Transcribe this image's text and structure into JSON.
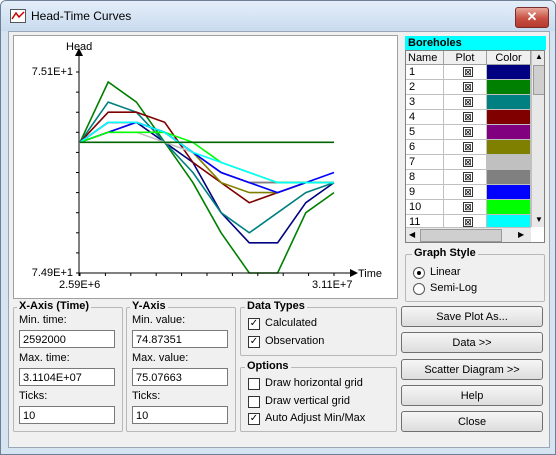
{
  "window": {
    "title": "Head-Time Curves",
    "close_glyph": "✕"
  },
  "chart_data": {
    "type": "line",
    "ylabel": "Head",
    "xlabel": "Time",
    "x_min_label": "2.59E+6",
    "x_max_label": "3.11E+7",
    "y_max_label": "7.51E+1",
    "y_min_label": "7.49E+1",
    "xlim": [
      2592000,
      31104000
    ],
    "ylim": [
      74.87351,
      75.07663
    ],
    "x": [
      0,
      1,
      2,
      3,
      4,
      5,
      6,
      7,
      8,
      9
    ],
    "series": [
      {
        "color": "#000080",
        "values": [
          75.0,
          75.02,
          75.02,
          75.0,
          74.98,
          74.93,
          74.9,
          74.9,
          74.94,
          74.96
        ]
      },
      {
        "color": "#008000",
        "values": [
          75.0,
          75.06,
          75.04,
          75.0,
          74.96,
          74.91,
          74.87,
          74.87,
          74.93,
          74.95
        ]
      },
      {
        "color": "#008080",
        "values": [
          75.0,
          75.04,
          75.03,
          75.0,
          74.97,
          74.93,
          74.91,
          74.93,
          74.95,
          74.96
        ]
      },
      {
        "color": "#800000",
        "values": [
          75.0,
          75.03,
          75.03,
          75.02,
          74.98,
          74.96,
          74.94,
          74.95,
          74.96,
          74.96
        ]
      },
      {
        "color": "#800080",
        "values": [
          75.0,
          75.02,
          75.02,
          75.01,
          74.99,
          74.97,
          74.96,
          74.96,
          74.96,
          74.96
        ]
      },
      {
        "color": "#808000",
        "values": [
          75.0,
          75.01,
          75.02,
          75.01,
          74.99,
          74.96,
          74.95,
          74.95,
          74.96,
          74.96
        ]
      },
      {
        "color": "#c0c0c0",
        "values": [
          75.0,
          75.01,
          75.01,
          75.0,
          74.99,
          74.97,
          74.96,
          74.96,
          74.96,
          74.96
        ]
      },
      {
        "color": "#808080",
        "values": [
          75.0,
          75.02,
          75.02,
          75.01,
          74.99,
          74.97,
          74.96,
          74.96,
          74.96,
          74.96
        ]
      },
      {
        "color": "#0000ff",
        "values": [
          75.0,
          75.01,
          75.02,
          75.01,
          74.99,
          74.97,
          74.96,
          74.95,
          74.96,
          74.97
        ]
      },
      {
        "color": "#00ff00",
        "values": [
          75.0,
          75.01,
          75.01,
          75.01,
          75.0,
          74.98,
          74.97,
          74.96,
          74.96,
          74.96
        ]
      },
      {
        "color": "#00ffff",
        "values": [
          75.0,
          75.02,
          75.02,
          75.01,
          74.99,
          74.98,
          74.97,
          74.96,
          74.96,
          74.96
        ]
      },
      {
        "color": "#006400",
        "values": [
          75.0,
          75.0,
          75.0,
          75.0,
          75.0,
          75.0,
          75.0,
          75.0,
          75.0,
          75.0
        ]
      }
    ]
  },
  "boreholes": {
    "title": "Boreholes",
    "headers": {
      "name": "Name",
      "plot": "Plot",
      "color": "Color"
    },
    "check_glyph": "⊠",
    "rows": [
      {
        "name": "1",
        "color": "#000080"
      },
      {
        "name": "2",
        "color": "#008000"
      },
      {
        "name": "3",
        "color": "#008080"
      },
      {
        "name": "4",
        "color": "#800000"
      },
      {
        "name": "5",
        "color": "#800080"
      },
      {
        "name": "6",
        "color": "#808000"
      },
      {
        "name": "7",
        "color": "#c0c0c0"
      },
      {
        "name": "8",
        "color": "#808080"
      },
      {
        "name": "9",
        "color": "#0000ff"
      },
      {
        "name": "10",
        "color": "#00ff00"
      },
      {
        "name": "11",
        "color": "#00ffff"
      }
    ]
  },
  "graph_style": {
    "title": "Graph Style",
    "linear": "Linear",
    "semilog": "Semi-Log",
    "selected": "Linear"
  },
  "x_axis": {
    "title": "X-Axis (Time)",
    "min_label": "Min. time:",
    "min_value": "2592000",
    "max_label": "Max. time:",
    "max_value": "3.1104E+07",
    "ticks_label": "Ticks:",
    "ticks_value": "10"
  },
  "y_axis": {
    "title": "Y-Axis",
    "min_label": "Min. value:",
    "min_value": "74.87351",
    "max_label": "Max. value:",
    "max_value": "75.07663",
    "ticks_label": "Ticks:",
    "ticks_value": "10"
  },
  "data_types": {
    "title": "Data Types",
    "calculated": "Calculated",
    "observation": "Observation",
    "check": "✓"
  },
  "options": {
    "title": "Options",
    "hgrid": "Draw horizontal grid",
    "vgrid": "Draw vertical grid",
    "auto": "Auto Adjust Min/Max"
  },
  "buttons": {
    "save": "Save Plot As...",
    "data": "Data >>",
    "scatter": "Scatter Diagram >>",
    "help": "Help",
    "close": "Close"
  }
}
